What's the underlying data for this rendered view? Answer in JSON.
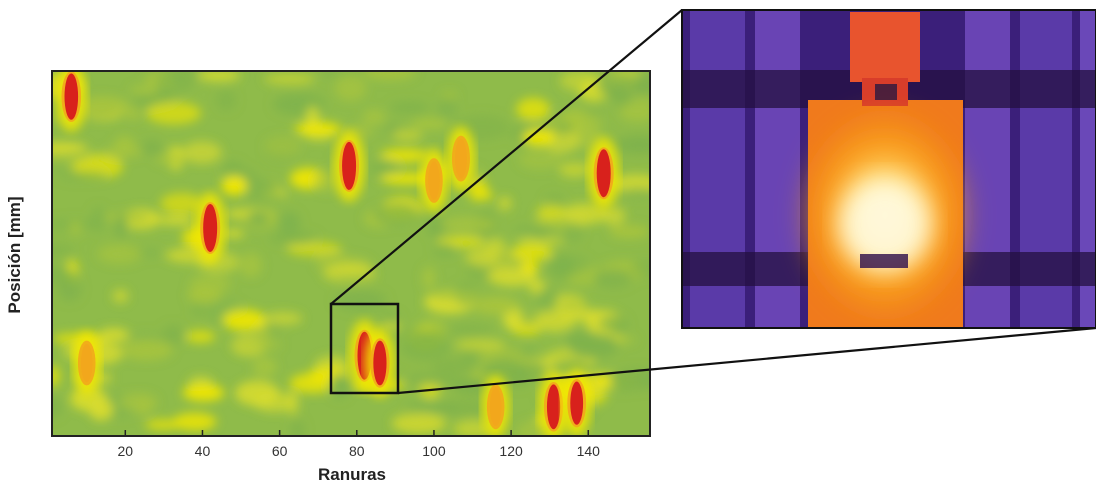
{
  "chart_data": {
    "type": "heatmap",
    "xlabel": "Ranuras",
    "ylabel": "Posición [mm]",
    "xlim": [
      1,
      156
    ],
    "xticks": [
      "20",
      "40",
      "60",
      "80",
      "100",
      "120",
      "140"
    ],
    "colormap": [
      "#7fb24c",
      "#a8c53e",
      "#d8dc2e",
      "#f3e800",
      "#f2a71c",
      "#d8211c"
    ],
    "hotspots": [
      {
        "x": 6,
        "y": 0.93,
        "intensity": 0.95
      },
      {
        "x": 42,
        "y": 0.57,
        "intensity": 1.0
      },
      {
        "x": 78,
        "y": 0.74,
        "intensity": 1.0
      },
      {
        "x": 144,
        "y": 0.72,
        "intensity": 1.0
      },
      {
        "x": 82,
        "y": 0.22,
        "intensity": 1.0
      },
      {
        "x": 86,
        "y": 0.2,
        "intensity": 0.9
      },
      {
        "x": 131,
        "y": 0.08,
        "intensity": 0.9
      },
      {
        "x": 137,
        "y": 0.09,
        "intensity": 0.85
      },
      {
        "x": 107,
        "y": 0.76,
        "intensity": 0.75
      },
      {
        "x": 100,
        "y": 0.7,
        "intensity": 0.7
      },
      {
        "x": 116,
        "y": 0.08,
        "intensity": 0.7
      },
      {
        "x": 10,
        "y": 0.2,
        "intensity": 0.7
      }
    ],
    "zoom_region": {
      "x": [
        73,
        90
      ],
      "y": [
        0.1,
        0.35
      ]
    },
    "inset": {
      "description_colors": [
        "#3a1a6e",
        "#6b3cb0",
        "#e8432a",
        "#f79a1a",
        "#fff3b0"
      ]
    }
  }
}
